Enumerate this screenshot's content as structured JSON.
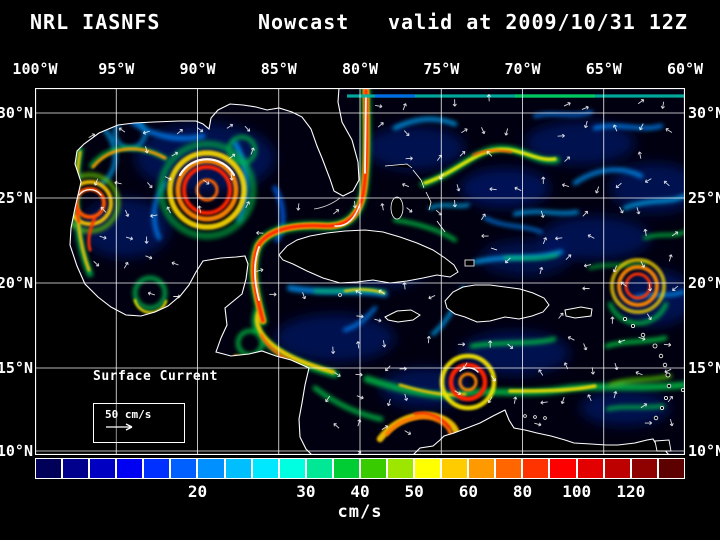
{
  "title": {
    "model": "NRL IASNFS",
    "run_type": "Nowcast",
    "valid": "valid at 2009/10/31 12Z"
  },
  "map": {
    "lon_labels": [
      "100°W",
      "95°W",
      "90°W",
      "85°W",
      "80°W",
      "75°W",
      "70°W",
      "65°W",
      "60°W"
    ],
    "lat_labels": [
      "30°N",
      "25°N",
      "20°N",
      "15°N",
      "10°N"
    ],
    "annotation": "Surface Current",
    "scale": {
      "label": "50 cm/s"
    }
  },
  "colorbar": {
    "unit": "cm/s",
    "segments_total": 24,
    "segment_colors": [
      "#000059",
      "#00008c",
      "#0000c2",
      "#0000f2",
      "#0030ff",
      "#0060ff",
      "#0090ff",
      "#00bfff",
      "#00e8ff",
      "#00ffe0",
      "#00e896",
      "#00cc33",
      "#38cc00",
      "#9ce600",
      "#ffff00",
      "#ffcc00",
      "#ff9900",
      "#ff6600",
      "#ff3300",
      "#ff0000",
      "#e30000",
      "#bd0000",
      "#8f0000",
      "#5c0000"
    ],
    "ticks": [
      {
        "label": "20",
        "boundary": 6
      },
      {
        "label": "30",
        "boundary": 10
      },
      {
        "label": "40",
        "boundary": 12
      },
      {
        "label": "50",
        "boundary": 14
      },
      {
        "label": "60",
        "boundary": 16
      },
      {
        "label": "80",
        "boundary": 18
      },
      {
        "label": "100",
        "boundary": 20
      },
      {
        "label": "120",
        "boundary": 22
      }
    ]
  },
  "chart_data": {
    "type": "heatmap",
    "title": "NRL IASNFS Nowcast valid at 2009/10/31 12Z",
    "quantity": "Surface Current",
    "units": "cm/s",
    "x_ticks": [
      "100°W",
      "95°W",
      "90°W",
      "85°W",
      "80°W",
      "75°W",
      "70°W",
      "65°W",
      "60°W"
    ],
    "y_ticks": [
      "30°N",
      "25°N",
      "20°N",
      "15°N",
      "10°N"
    ],
    "colorbar_ticks": [
      20,
      30,
      40,
      50,
      60,
      80,
      100,
      120
    ],
    "reference_vector": "50 cm/s"
  }
}
